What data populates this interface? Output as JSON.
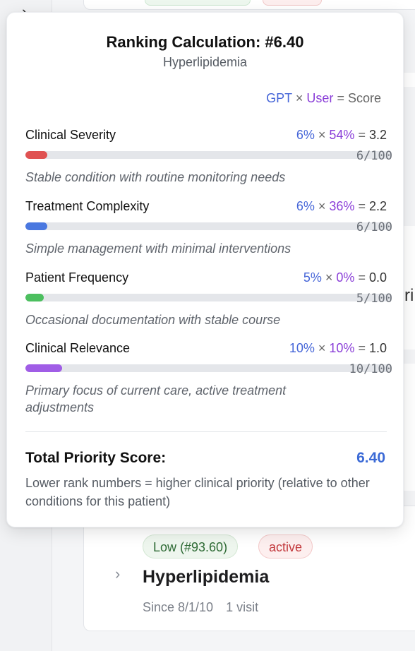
{
  "popover": {
    "title": "Ranking Calculation: #6.40",
    "subtitle": "Hyperlipidemia",
    "legend": {
      "gpt": "GPT",
      "times": "×",
      "user": "User",
      "equals": "=",
      "score": "Score"
    },
    "factors": [
      {
        "name": "Clinical Severity",
        "gpt": "6%",
        "user": "54%",
        "result": "3.2",
        "value_label": "6/100",
        "fill_fraction": 0.06,
        "color": "#e05252",
        "description": "Stable condition with routine monitoring needs"
      },
      {
        "name": "Treatment Complexity",
        "gpt": "6%",
        "user": "36%",
        "result": "2.2",
        "value_label": "6/100",
        "fill_fraction": 0.06,
        "color": "#4a78e0",
        "description": "Simple management with minimal interventions"
      },
      {
        "name": "Patient Frequency",
        "gpt": "5%",
        "user": "0%",
        "result": "0.0",
        "value_label": "5/100",
        "fill_fraction": 0.05,
        "color": "#4cbf5f",
        "description": "Occasional documentation with stable course"
      },
      {
        "name": "Clinical Relevance",
        "gpt": "10%",
        "user": "10%",
        "result": "1.0",
        "value_label": "10/100",
        "fill_fraction": 0.1,
        "color": "#a05de6",
        "description": "Primary focus of current care, active treatment adjustments"
      }
    ],
    "total_label": "Total Priority Score:",
    "total_value": "6.40",
    "footnote": "Lower rank numbers = higher clinical priority (relative to other conditions for this patient)"
  },
  "card": {
    "priority_badge": "Low (#93.60)",
    "status_badge": "active",
    "title": "Hyperlipidemia",
    "since": "Since 8/1/10",
    "visits": "1 visit"
  },
  "icons": {
    "rail_chevron": "chevron-right-icon",
    "card_chevron": "chevron-right-icon"
  },
  "edge_fragment_text": "ri"
}
